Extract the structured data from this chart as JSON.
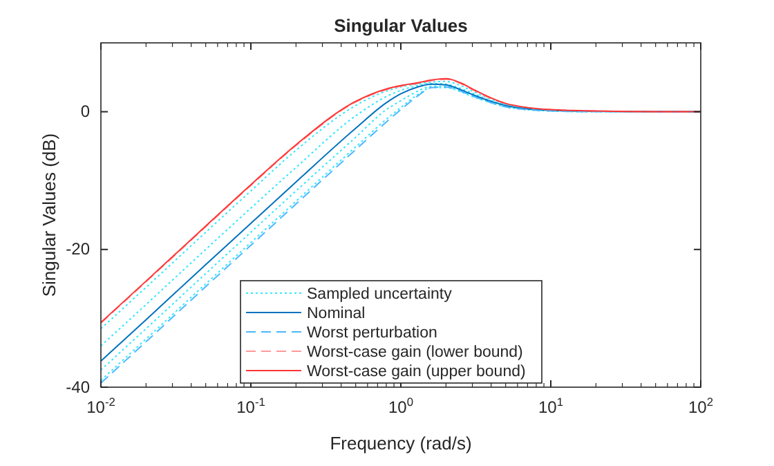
{
  "chart_data": {
    "type": "line",
    "title": "Singular Values",
    "xlabel": "Frequency (rad/s)",
    "ylabel": "Singular Values (dB)",
    "log": "x",
    "x": [
      0.01,
      0.02,
      0.05,
      0.1,
      0.2,
      0.5,
      0.8,
      1,
      1.3,
      1.6,
      2,
      2.5,
      3,
      4,
      5,
      7,
      10,
      20,
      50,
      100
    ],
    "xlim": [
      0.01,
      100
    ],
    "xticks": [
      {
        "value": 0.01,
        "label": "10$^{-2}$"
      },
      {
        "value": 0.1,
        "label": "10$^{-1}$"
      },
      {
        "value": 1,
        "label": "10$^{0}$"
      },
      {
        "value": 10,
        "label": "10$^{1}$"
      },
      {
        "value": 100,
        "label": "10$^{2}$"
      }
    ],
    "ylim": [
      -40,
      10
    ],
    "yticks": [
      -40,
      -20,
      0
    ],
    "grid": false,
    "legend": "bottom",
    "series": [
      {
        "name": "Sampled uncertainty",
        "color": "#33e6ff",
        "line_style": "dotted",
        "values": [
          -31.5,
          -25.5,
          -17.5,
          -11.5,
          -5.6,
          0.9,
          3.0,
          3.6,
          4.0,
          4.3,
          4.4,
          3.8,
          3.0,
          1.8,
          1.1,
          0.5,
          0.2,
          0.05,
          0,
          0
        ]
      },
      {
        "color": "#33e6ff",
        "line_style": "dotted",
        "values": [
          -34,
          -28,
          -20,
          -14,
          -8.1,
          -0.6,
          2.2,
          3.1,
          3.8,
          4.1,
          4.0,
          3.4,
          2.7,
          1.6,
          1.0,
          0.4,
          0.2,
          0.05,
          0,
          0
        ]
      },
      {
        "color": "#33e6ff",
        "line_style": "dotted",
        "values": [
          -37.5,
          -31.5,
          -23.5,
          -17.5,
          -11.5,
          -3.7,
          0.3,
          1.6,
          3.0,
          3.7,
          3.7,
          3.1,
          2.4,
          1.4,
          0.8,
          0.35,
          0.15,
          0,
          0,
          0
        ]
      },
      {
        "color": "#33e6ff",
        "line_style": "dotted",
        "values": [
          -39,
          -33,
          -25,
          -19,
          -13,
          -5.1,
          -1.1,
          0.6,
          2.5,
          3.5,
          3.5,
          2.9,
          2.2,
          1.3,
          0.7,
          0.3,
          0.1,
          0,
          0,
          0
        ]
      },
      {
        "name": "Nominal",
        "color": "#0072bd",
        "line_style": "solid",
        "values": [
          -36.2,
          -30.2,
          -22.2,
          -16.2,
          -10.2,
          -2.4,
          1.3,
          2.6,
          3.6,
          4.0,
          3.9,
          3.2,
          2.5,
          1.5,
          0.9,
          0.4,
          0.2,
          0.05,
          0,
          0
        ]
      },
      {
        "name": "Worst perturbation",
        "color": "#4db8ff",
        "line_style": "dashed",
        "values": [
          -39.4,
          -33.4,
          -25.4,
          -19.4,
          -13.4,
          -5.5,
          -1.5,
          0.3,
          2.3,
          3.5,
          3.6,
          3.0,
          2.3,
          1.3,
          0.7,
          0.3,
          0.1,
          0,
          0,
          0
        ]
      },
      {
        "name": "Worst-case gain (lower bound)",
        "color": "#ff9999",
        "line_style": "dashed",
        "values": [
          -30.7,
          -24.7,
          -16.7,
          -10.7,
          -4.9,
          1.4,
          3.2,
          3.7,
          4.1,
          4.5,
          4.7,
          4.1,
          3.2,
          1.9,
          1.2,
          0.6,
          0.3,
          0.1,
          0,
          0
        ]
      },
      {
        "name": "Worst-case gain (upper bound)",
        "color": "#ff3333",
        "line_style": "solid",
        "values": [
          -30.6,
          -24.6,
          -16.6,
          -10.6,
          -4.8,
          1.5,
          3.3,
          3.8,
          4.2,
          4.6,
          4.8,
          4.2,
          3.3,
          2.0,
          1.2,
          0.6,
          0.3,
          0.1,
          0,
          0
        ]
      }
    ]
  }
}
